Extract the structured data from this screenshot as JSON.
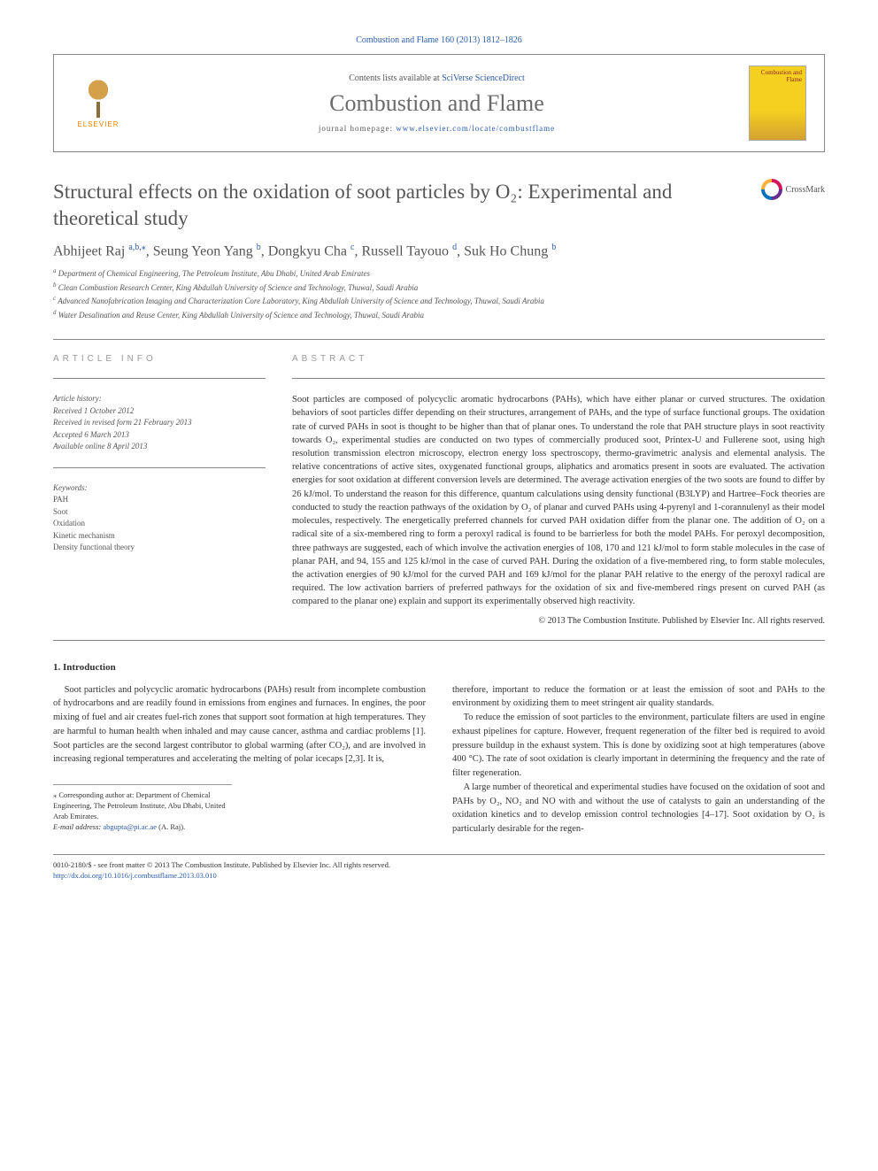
{
  "citation": "Combustion and Flame 160 (2013) 1812–1826",
  "header": {
    "contents_prefix": "Contents lists available at ",
    "contents_link": "SciVerse ScienceDirect",
    "journal_name": "Combustion and Flame",
    "homepage_prefix": "journal homepage: ",
    "homepage_url": "www.elsevier.com/locate/combustflame",
    "publisher": "ELSEVIER",
    "cover_text": "Combustion and Flame"
  },
  "title": "Structural effects on the oxidation of soot particles by O₂: Experimental and theoretical study",
  "crossmark": "CrossMark",
  "authors_html": "Abhijeet Raj",
  "authors": [
    {
      "name": "Abhijeet Raj",
      "affil": "a,b,⁎"
    },
    {
      "name": "Seung Yeon Yang",
      "affil": "b"
    },
    {
      "name": "Dongkyu Cha",
      "affil": "c"
    },
    {
      "name": "Russell Tayouo",
      "affil": "d"
    },
    {
      "name": "Suk Ho Chung",
      "affil": "b"
    }
  ],
  "affiliations": [
    {
      "key": "a",
      "text": "Department of Chemical Engineering, The Petroleum Institute, Abu Dhabi, United Arab Emirates"
    },
    {
      "key": "b",
      "text": "Clean Combustion Research Center, King Abdullah University of Science and Technology, Thuwal, Saudi Arabia"
    },
    {
      "key": "c",
      "text": "Advanced Nanofabrication Imaging and Characterization Core Laboratory, King Abdullah University of Science and Technology, Thuwal, Saudi Arabia"
    },
    {
      "key": "d",
      "text": "Water Desalination and Reuse Center, King Abdullah University of Science and Technology, Thuwal, Saudi Arabia"
    }
  ],
  "articleinfo": {
    "heading": "ARTICLE INFO",
    "history_label": "Article history:",
    "received": "Received 1 October 2012",
    "revised": "Received in revised form 21 February 2013",
    "accepted": "Accepted 6 March 2013",
    "online": "Available online 8 April 2013",
    "keywords_label": "Keywords:",
    "keywords": [
      "PAH",
      "Soot",
      "Oxidation",
      "Kinetic mechanism",
      "Density functional theory"
    ]
  },
  "abstract": {
    "heading": "ABSTRACT",
    "text": "Soot particles are composed of polycyclic aromatic hydrocarbons (PAHs), which have either planar or curved structures. The oxidation behaviors of soot particles differ depending on their structures, arrangement of PAHs, and the type of surface functional groups. The oxidation rate of curved PAHs in soot is thought to be higher than that of planar ones. To understand the role that PAH structure plays in soot reactivity towards O₂, experimental studies are conducted on two types of commercially produced soot, Printex-U and Fullerene soot, using high resolution transmission electron microscopy, electron energy loss spectroscopy, thermo-gravimetric analysis and elemental analysis. The relative concentrations of active sites, oxygenated functional groups, aliphatics and aromatics present in soots are evaluated. The activation energies for soot oxidation at different conversion levels are determined. The average activation energies of the two soots are found to differ by 26 kJ/mol. To understand the reason for this difference, quantum calculations using density functional (B3LYP) and Hartree–Fock theories are conducted to study the reaction pathways of the oxidation by O₂ of planar and curved PAHs using 4-pyrenyl and 1-corannulenyl as their model molecules, respectively. The energetically preferred channels for curved PAH oxidation differ from the planar one. The addition of O₂ on a radical site of a six-membered ring to form a peroxyl radical is found to be barrierless for both the model PAHs. For peroxyl decomposition, three pathways are suggested, each of which involve the activation energies of 108, 170 and 121 kJ/mol to form stable molecules in the case of planar PAH, and 94, 155 and 125 kJ/mol in the case of curved PAH. During the oxidation of a five-membered ring, to form stable molecules, the activation energies of 90 kJ/mol for the curved PAH and 169 kJ/mol for the planar PAH relative to the energy of the peroxyl radical are required. The low activation barriers of preferred pathways for the oxidation of six and five-membered rings present on curved PAH (as compared to the planar one) explain and support its experimentally observed high reactivity.",
    "copyright": "© 2013 The Combustion Institute. Published by Elsevier Inc. All rights reserved."
  },
  "body": {
    "intro_heading": "1. Introduction",
    "para1": "Soot particles and polycyclic aromatic hydrocarbons (PAHs) result from incomplete combustion of hydrocarbons and are readily found in emissions from engines and furnaces. In engines, the poor mixing of fuel and air creates fuel-rich zones that support soot formation at high temperatures. They are harmful to human health when inhaled and may cause cancer, asthma and cardiac problems [1]. Soot particles are the second largest contributor to global warming (after CO₂), and are involved in increasing regional temperatures and accelerating the melting of polar icecaps [2,3]. It is,",
    "para2": "therefore, important to reduce the formation or at least the emission of soot and PAHs to the environment by oxidizing them to meet stringent air quality standards.",
    "para3": "To reduce the emission of soot particles to the environment, particulate filters are used in engine exhaust pipelines for capture. However, frequent regeneration of the filter bed is required to avoid pressure buildup in the exhaust system. This is done by oxidizing soot at high temperatures (above 400 °C). The rate of soot oxidation is clearly important in determining the frequency and the rate of filter regeneration.",
    "para4": "A large number of theoretical and experimental studies have focused on the oxidation of soot and PAHs by O₂, NO₂ and NO with and without the use of catalysts to gain an understanding of the oxidation kinetics and to develop emission control technologies [4–17]. Soot oxidation by O₂ is particularly desirable for the regen-"
  },
  "corresponding": {
    "star": "⁎",
    "text": "Corresponding author at: Department of Chemical Engineering, The Petroleum Institute, Abu Dhabi, United Arab Emirates.",
    "email_label": "E-mail address:",
    "email": "abgupta@pi.ac.ae",
    "email_name": "(A. Raj)."
  },
  "footer": {
    "line1": "0010-2180/$ - see front matter © 2013 The Combustion Institute. Published by Elsevier Inc. All rights reserved.",
    "doi": "http://dx.doi.org/10.1016/j.combustflame.2013.03.010"
  },
  "colors": {
    "link": "#2a5caa",
    "elsevier_orange": "#ff7f00",
    "text": "#333",
    "grey": "#555"
  },
  "typography": {
    "title_fontsize": 23,
    "journal_name_fontsize": 26,
    "body_fontsize": 10.5,
    "abstract_fontsize": 10.5
  }
}
